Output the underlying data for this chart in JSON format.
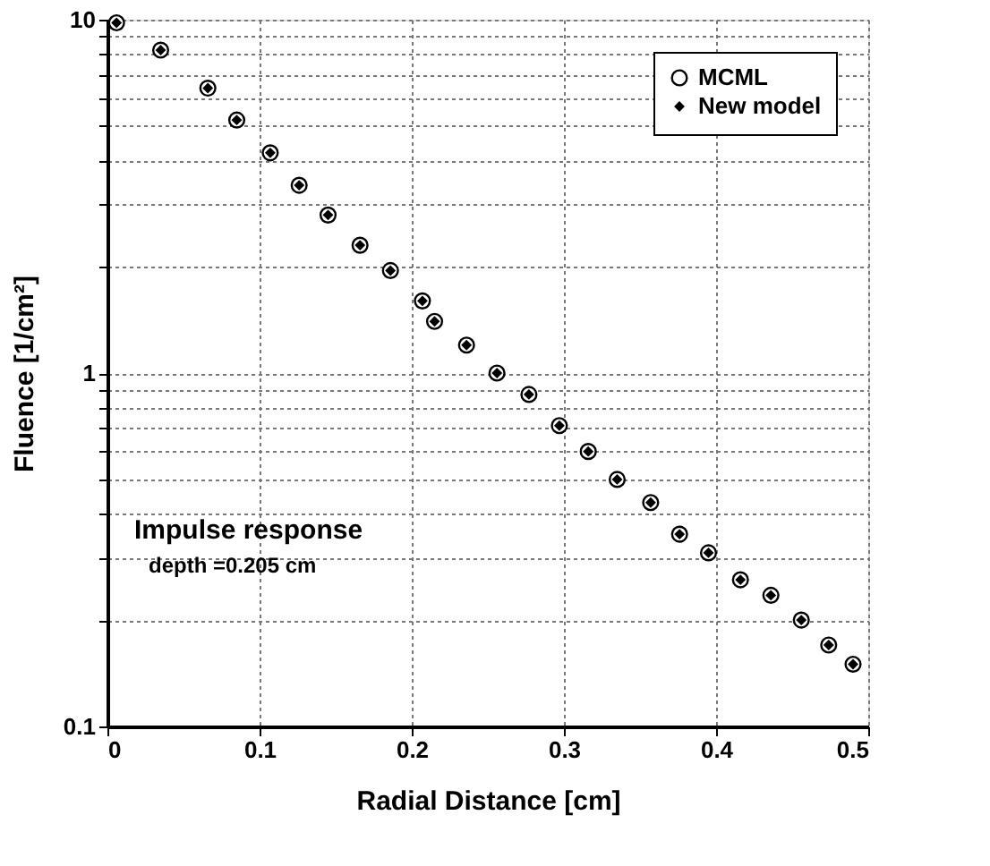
{
  "chart_data": {
    "type": "scatter",
    "xlabel": "Radial Distance [cm]",
    "ylabel": "Fluence [1/cm²]",
    "annotations": [
      "Impulse response",
      "depth =0.205 cm"
    ],
    "x": [
      0.006,
      0.035,
      0.066,
      0.085,
      0.107,
      0.126,
      0.145,
      0.166,
      0.186,
      0.207,
      0.215,
      0.236,
      0.256,
      0.277,
      0.297,
      0.316,
      0.335,
      0.357,
      0.376,
      0.395,
      0.416,
      0.436,
      0.456,
      0.474,
      0.49
    ],
    "series": [
      {
        "name": "MCML",
        "color": "#000000",
        "marker": "circle",
        "values": [
          9.8,
          8.2,
          6.4,
          5.2,
          4.2,
          3.4,
          2.8,
          2.3,
          1.95,
          1.6,
          1.4,
          1.2,
          1.0,
          0.87,
          0.71,
          0.6,
          0.5,
          0.43,
          0.35,
          0.31,
          0.26,
          0.235,
          0.2,
          0.17,
          0.15
        ]
      },
      {
        "name": "New model",
        "color": "#000000",
        "marker": "diamond",
        "values": [
          9.8,
          8.2,
          6.4,
          5.2,
          4.2,
          3.4,
          2.8,
          2.3,
          1.95,
          1.6,
          1.4,
          1.2,
          1.0,
          0.87,
          0.71,
          0.6,
          0.5,
          0.43,
          0.35,
          0.31,
          0.26,
          0.235,
          0.2,
          0.17,
          0.15
        ]
      }
    ],
    "xlim": [
      0,
      0.5
    ],
    "xticks": [
      0,
      0.1,
      0.2,
      0.3,
      0.4,
      0.5
    ],
    "ylim": [
      0.1,
      10
    ],
    "yticks": [
      0.1,
      {
        "value": 0.2,
        "label": null
      },
      {
        "value": 0.3,
        "label": null
      },
      {
        "value": 0.4,
        "label": null
      },
      {
        "value": 0.5,
        "label": null
      },
      {
        "value": 0.6,
        "label": null
      },
      {
        "value": 0.7,
        "label": null
      },
      {
        "value": 0.8,
        "label": null
      },
      {
        "value": 0.9,
        "label": null
      },
      1,
      {
        "value": 2,
        "label": null
      },
      {
        "value": 3,
        "label": null
      },
      {
        "value": 4,
        "label": null
      },
      {
        "value": 5,
        "label": null
      },
      {
        "value": 6,
        "label": null
      },
      {
        "value": 7,
        "label": null
      },
      {
        "value": 8,
        "label": null
      },
      {
        "value": 9,
        "label": null
      },
      10
    ],
    "log": "y",
    "grid": true,
    "legend": "top right"
  }
}
